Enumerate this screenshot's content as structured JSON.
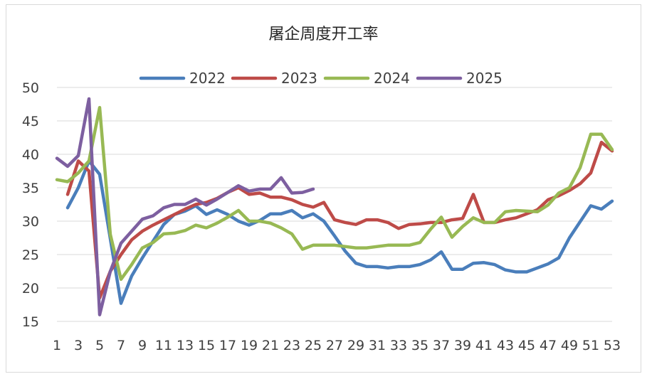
{
  "chart_data": {
    "type": "line",
    "title": "屠企周度开工率",
    "xlabel": "",
    "ylabel": "",
    "ylim": [
      15,
      50
    ],
    "yticks": [
      15,
      20,
      25,
      30,
      35,
      40,
      45,
      50
    ],
    "xlim": [
      1,
      53
    ],
    "xticks": [
      1,
      3,
      5,
      7,
      9,
      11,
      13,
      15,
      17,
      19,
      21,
      23,
      25,
      27,
      29,
      31,
      33,
      35,
      37,
      39,
      41,
      43,
      45,
      47,
      49,
      51,
      53
    ],
    "grid": "horizontal",
    "legend_position": "top",
    "series": [
      {
        "name": "2022",
        "color": "#4a7ebb",
        "points": [
          [
            2,
            32
          ],
          [
            3,
            35
          ],
          [
            4,
            39
          ],
          [
            5,
            37
          ],
          [
            7,
            17.7
          ],
          [
            8,
            21.8
          ],
          [
            9,
            24.5
          ],
          [
            10,
            27
          ],
          [
            11,
            29.5
          ],
          [
            12,
            31
          ],
          [
            13,
            31.5
          ],
          [
            14,
            32.3
          ],
          [
            15,
            31
          ],
          [
            16,
            31.7
          ],
          [
            17,
            31
          ],
          [
            18,
            30
          ],
          [
            19,
            29.4
          ],
          [
            20,
            30.1
          ],
          [
            21,
            31.1
          ],
          [
            22,
            31.1
          ],
          [
            23,
            31.6
          ],
          [
            24,
            30.5
          ],
          [
            25,
            31.1
          ],
          [
            26,
            30
          ],
          [
            27,
            27.8
          ],
          [
            28,
            25.5
          ],
          [
            29,
            23.7
          ],
          [
            30,
            23.2
          ],
          [
            31,
            23.2
          ],
          [
            32,
            23
          ],
          [
            33,
            23.2
          ],
          [
            34,
            23.2
          ],
          [
            35,
            23.5
          ],
          [
            36,
            24.2
          ],
          [
            37,
            25.4
          ],
          [
            38,
            22.8
          ],
          [
            39,
            22.8
          ],
          [
            40,
            23.7
          ],
          [
            41,
            23.8
          ],
          [
            42,
            23.5
          ],
          [
            43,
            22.7
          ],
          [
            44,
            22.4
          ],
          [
            45,
            22.4
          ],
          [
            46,
            23
          ],
          [
            47,
            23.6
          ],
          [
            48,
            24.5
          ],
          [
            49,
            27.5
          ],
          [
            50,
            29.9
          ],
          [
            51,
            32.3
          ],
          [
            52,
            31.8
          ],
          [
            53,
            33
          ]
        ]
      },
      {
        "name": "2023",
        "color": "#be4b48",
        "points": [
          [
            2,
            34
          ],
          [
            3,
            39
          ],
          [
            4,
            37.5
          ],
          [
            5,
            18.5
          ],
          [
            6,
            22.5
          ],
          [
            7,
            25
          ],
          [
            8,
            27.2
          ],
          [
            9,
            28.5
          ],
          [
            10,
            29.4
          ],
          [
            11,
            30.2
          ],
          [
            12,
            31
          ],
          [
            13,
            31.8
          ],
          [
            14,
            32.5
          ],
          [
            15,
            32.8
          ],
          [
            16,
            33.4
          ],
          [
            17,
            34.3
          ],
          [
            18,
            35
          ],
          [
            19,
            34
          ],
          [
            20,
            34.2
          ],
          [
            21,
            33.6
          ],
          [
            22,
            33.6
          ],
          [
            23,
            33.2
          ],
          [
            24,
            32.5
          ],
          [
            25,
            32.1
          ],
          [
            26,
            32.8
          ],
          [
            27,
            30.2
          ],
          [
            28,
            29.8
          ],
          [
            29,
            29.5
          ],
          [
            30,
            30.2
          ],
          [
            31,
            30.2
          ],
          [
            32,
            29.8
          ],
          [
            33,
            28.9
          ],
          [
            34,
            29.5
          ],
          [
            35,
            29.6
          ],
          [
            36,
            29.8
          ],
          [
            37,
            29.8
          ],
          [
            38,
            30.2
          ],
          [
            39,
            30.4
          ],
          [
            40,
            34
          ],
          [
            41,
            29.8
          ],
          [
            42,
            29.8
          ],
          [
            43,
            30.2
          ],
          [
            44,
            30.5
          ],
          [
            45,
            31.1
          ],
          [
            46,
            31.7
          ],
          [
            47,
            33.2
          ],
          [
            48,
            33.8
          ],
          [
            49,
            34.6
          ],
          [
            50,
            35.6
          ],
          [
            51,
            37.2
          ],
          [
            52,
            41.8
          ],
          [
            53,
            40.5
          ]
        ]
      },
      {
        "name": "2024",
        "color": "#98b954",
        "points": [
          [
            1,
            36.2
          ],
          [
            2,
            35.9
          ],
          [
            3,
            37.2
          ],
          [
            4,
            39
          ],
          [
            5,
            47
          ],
          [
            6,
            28
          ],
          [
            7,
            21.3
          ],
          [
            8,
            23.5
          ],
          [
            9,
            26
          ],
          [
            10,
            26.8
          ],
          [
            11,
            28.1
          ],
          [
            12,
            28.2
          ],
          [
            13,
            28.6
          ],
          [
            14,
            29.4
          ],
          [
            15,
            29
          ],
          [
            16,
            29.7
          ],
          [
            17,
            30.6
          ],
          [
            18,
            31.6
          ],
          [
            19,
            30
          ],
          [
            20,
            30
          ],
          [
            21,
            29.7
          ],
          [
            22,
            29
          ],
          [
            23,
            28.1
          ],
          [
            24,
            25.8
          ],
          [
            25,
            26.4
          ],
          [
            26,
            26.4
          ],
          [
            27,
            26.4
          ],
          [
            28,
            26.2
          ],
          [
            29,
            26
          ],
          [
            30,
            26
          ],
          [
            31,
            26.2
          ],
          [
            32,
            26.4
          ],
          [
            33,
            26.4
          ],
          [
            34,
            26.4
          ],
          [
            35,
            26.8
          ],
          [
            36,
            28.8
          ],
          [
            37,
            30.6
          ],
          [
            38,
            27.6
          ],
          [
            39,
            29.2
          ],
          [
            40,
            30.5
          ],
          [
            41,
            29.8
          ],
          [
            42,
            29.8
          ],
          [
            43,
            31.4
          ],
          [
            44,
            31.6
          ],
          [
            45,
            31.5
          ],
          [
            46,
            31.4
          ],
          [
            47,
            32.4
          ],
          [
            48,
            34.2
          ],
          [
            49,
            35
          ],
          [
            50,
            38
          ],
          [
            51,
            43
          ],
          [
            52,
            43
          ],
          [
            53,
            40.7
          ]
        ]
      },
      {
        "name": "2025",
        "color": "#7d5fa0",
        "points": [
          [
            1,
            39.4
          ],
          [
            2,
            38.2
          ],
          [
            3,
            39.8
          ],
          [
            4,
            48.3
          ],
          [
            5,
            16
          ],
          [
            6,
            22.5
          ],
          [
            7,
            26.7
          ],
          [
            8,
            28.5
          ],
          [
            9,
            30.3
          ],
          [
            10,
            30.8
          ],
          [
            11,
            32
          ],
          [
            12,
            32.5
          ],
          [
            13,
            32.5
          ],
          [
            14,
            33.3
          ],
          [
            15,
            32.4
          ],
          [
            16,
            33.3
          ],
          [
            17,
            34.3
          ],
          [
            18,
            35.3
          ],
          [
            19,
            34.5
          ],
          [
            20,
            34.8
          ],
          [
            21,
            34.8
          ],
          [
            22,
            36.5
          ],
          [
            23,
            34.2
          ],
          [
            24,
            34.3
          ],
          [
            25,
            34.8
          ]
        ]
      }
    ]
  }
}
